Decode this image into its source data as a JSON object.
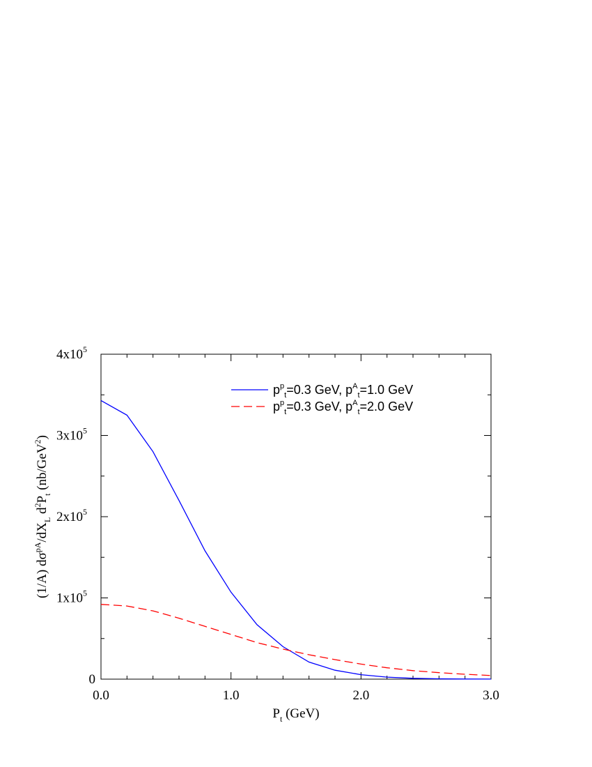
{
  "chart_data": {
    "type": "line",
    "xlabel": "P",
    "xlabel_sub": "t",
    "xlabel_unit": " (GeV)",
    "ylabel": "(1/A) dσ^{pA}/dX_L d^2P_t (nb/GeV^2)",
    "xlim": [
      0,
      3
    ],
    "ylim": [
      0,
      400000
    ],
    "x_ticks": [
      {
        "value": 0,
        "label": "0.0"
      },
      {
        "value": 1,
        "label": "1.0"
      },
      {
        "value": 2,
        "label": "2.0"
      },
      {
        "value": 3,
        "label": "3.0"
      }
    ],
    "y_ticks": [
      {
        "value": 0,
        "label": "0"
      },
      {
        "value": 100000,
        "label": "1x10",
        "exp": "5"
      },
      {
        "value": 200000,
        "label": "2x10",
        "exp": "5"
      },
      {
        "value": 300000,
        "label": "3x10",
        "exp": "5"
      },
      {
        "value": 400000,
        "label": "4x10",
        "exp": "5"
      }
    ],
    "legend_position": "top-right",
    "grid": false,
    "series": [
      {
        "legend": "p^p_t=0.3 GeV, p^A_t=1.0 GeV",
        "color": "#0000ff",
        "dash": "solid",
        "x": [
          0.0,
          0.2,
          0.4,
          0.6,
          0.8,
          1.0,
          1.2,
          1.4,
          1.6,
          1.8,
          2.0,
          2.2,
          2.4,
          2.6,
          2.8,
          3.0
        ],
        "y": [
          343000,
          325000,
          280000,
          220000,
          158000,
          107000,
          67000,
          40000,
          21000,
          11000,
          5500,
          2500,
          1000,
          400,
          150,
          50
        ]
      },
      {
        "legend": "p^p_t=0.3 GeV, p^A_t=2.0 GeV",
        "color": "#ff0000",
        "dash": "dashed",
        "x": [
          0.0,
          0.2,
          0.4,
          0.6,
          0.8,
          1.0,
          1.2,
          1.4,
          1.6,
          1.8,
          2.0,
          2.2,
          2.4,
          2.6,
          2.8,
          3.0
        ],
        "y": [
          92000,
          90000,
          84000,
          75000,
          65000,
          55000,
          45000,
          37000,
          30000,
          24000,
          18500,
          14000,
          10500,
          8000,
          6000,
          4500
        ]
      }
    ]
  }
}
